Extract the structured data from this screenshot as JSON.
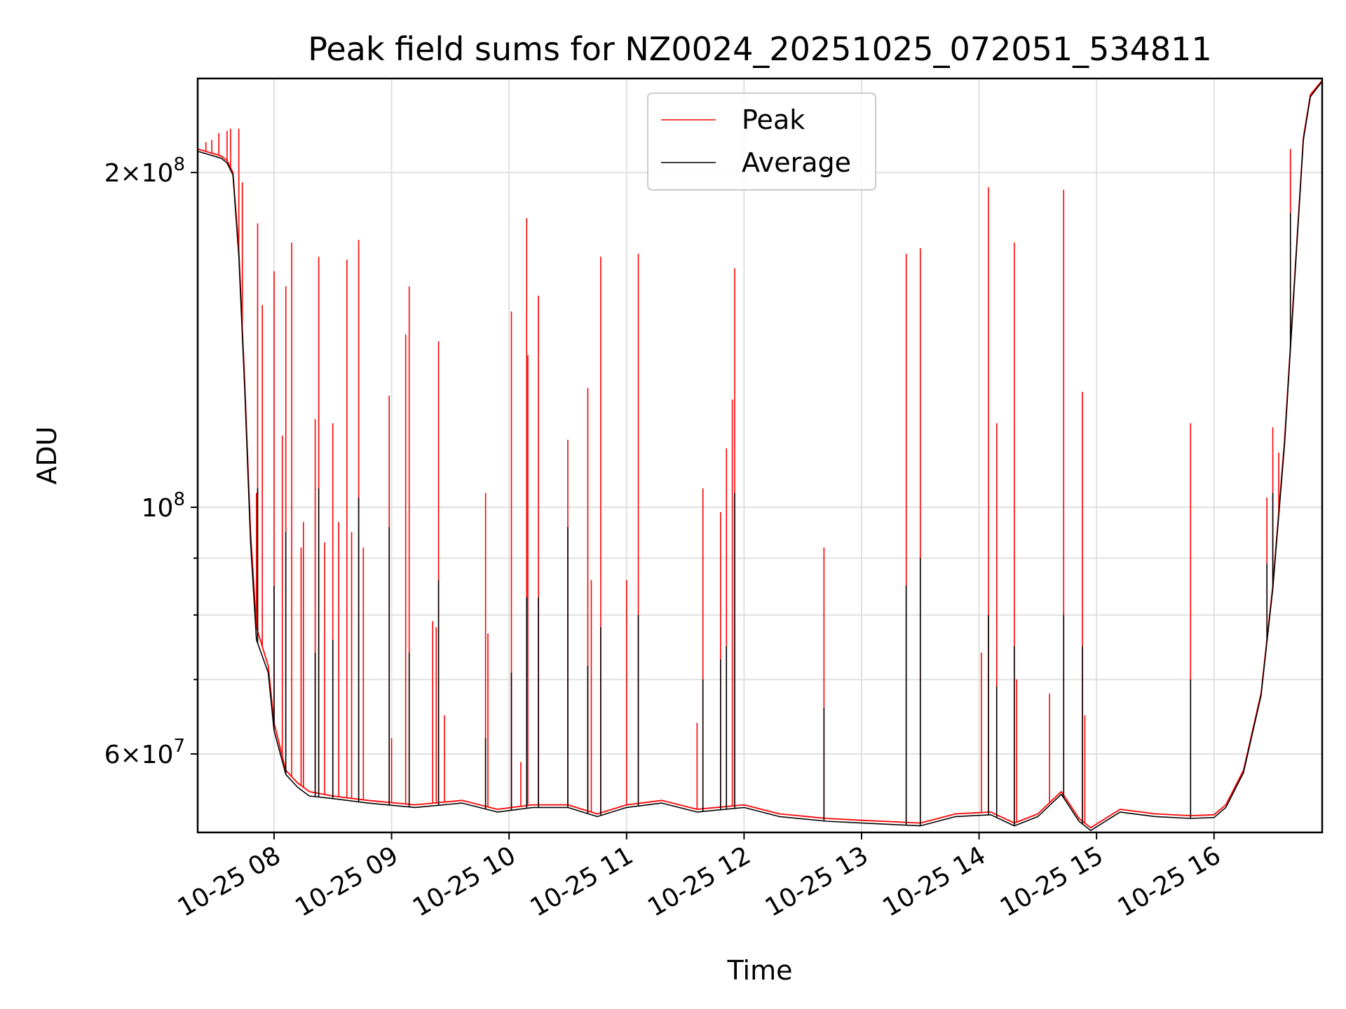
{
  "chart_data": {
    "type": "line",
    "title": "Peak field sums for NZ0024_20251025_072051_534811",
    "xlabel": "Time",
    "ylabel": "ADU",
    "y_scale": "log",
    "x_range_hours": [
      7.35,
      16.92
    ],
    "ylim": [
      51000000,
      243000000
    ],
    "x_ticks": [
      {
        "value": 8,
        "label": "10-25 08"
      },
      {
        "value": 9,
        "label": "10-25 09"
      },
      {
        "value": 10,
        "label": "10-25 10"
      },
      {
        "value": 11,
        "label": "10-25 11"
      },
      {
        "value": 12,
        "label": "10-25 12"
      },
      {
        "value": 13,
        "label": "10-25 13"
      },
      {
        "value": 14,
        "label": "10-25 14"
      },
      {
        "value": 15,
        "label": "10-25 15"
      },
      {
        "value": 16,
        "label": "10-25 16"
      }
    ],
    "y_major_ticks": [
      {
        "value": 60000000,
        "mant": "6",
        "exp": "7"
      },
      {
        "value": 100000000,
        "mant": "",
        "exp": "8"
      },
      {
        "value": 200000000,
        "mant": "2",
        "exp": "8"
      }
    ],
    "y_minor_ticks": [
      70000000,
      80000000,
      90000000
    ],
    "legend_position": "upper center",
    "series": [
      {
        "name": "Peak",
        "color": "#ff0000",
        "baseline": [
          [
            7.35,
            210000000
          ],
          [
            7.55,
            207000000
          ],
          [
            7.6,
            205000000
          ],
          [
            7.65,
            200000000
          ],
          [
            7.7,
            170000000
          ],
          [
            7.75,
            130000000
          ],
          [
            7.8,
            95000000
          ],
          [
            7.85,
            78000000
          ],
          [
            7.95,
            72000000
          ],
          [
            8.0,
            64000000
          ],
          [
            8.1,
            58000000
          ],
          [
            8.2,
            56500000
          ],
          [
            8.3,
            55500000
          ],
          [
            8.5,
            55000000
          ],
          [
            8.8,
            54500000
          ],
          [
            9.2,
            54000000
          ],
          [
            9.6,
            54500000
          ],
          [
            9.9,
            53500000
          ],
          [
            10.2,
            54000000
          ],
          [
            10.5,
            54000000
          ],
          [
            10.75,
            53000000
          ],
          [
            11.0,
            54000000
          ],
          [
            11.3,
            54500000
          ],
          [
            11.6,
            53500000
          ],
          [
            12.0,
            54000000
          ],
          [
            12.3,
            53000000
          ],
          [
            12.7,
            52500000
          ],
          [
            13.0,
            52300000
          ],
          [
            13.5,
            52000000
          ],
          [
            13.8,
            53000000
          ],
          [
            14.1,
            53200000
          ],
          [
            14.3,
            52000000
          ],
          [
            14.5,
            53000000
          ],
          [
            14.7,
            55500000
          ],
          [
            14.85,
            52500000
          ],
          [
            14.95,
            51500000
          ],
          [
            15.2,
            53500000
          ],
          [
            15.5,
            53000000
          ],
          [
            15.8,
            52800000
          ],
          [
            16.0,
            52900000
          ],
          [
            16.1,
            54000000
          ],
          [
            16.25,
            58000000
          ],
          [
            16.4,
            68000000
          ],
          [
            16.5,
            85000000
          ],
          [
            16.6,
            115000000
          ],
          [
            16.7,
            170000000
          ],
          [
            16.76,
            215000000
          ],
          [
            16.82,
            235000000
          ],
          [
            16.92,
            242000000
          ]
        ],
        "spikes": [
          [
            7.42,
            213000000
          ],
          [
            7.47,
            214000000
          ],
          [
            7.53,
            217000000
          ],
          [
            7.6,
            218000000
          ],
          [
            7.63,
            219000000
          ],
          [
            7.7,
            219000000
          ],
          [
            7.73,
            196000000
          ],
          [
            7.86,
            180000000
          ],
          [
            7.9,
            152000000
          ],
          [
            7.85,
            103000000
          ],
          [
            8.0,
            163000000
          ],
          [
            8.07,
            116000000
          ],
          [
            8.1,
            158000000
          ],
          [
            8.15,
            173000000
          ],
          [
            8.23,
            92000000
          ],
          [
            8.25,
            97000000
          ],
          [
            8.35,
            120000000
          ],
          [
            8.38,
            168000000
          ],
          [
            8.43,
            93000000
          ],
          [
            8.5,
            119000000
          ],
          [
            8.55,
            97000000
          ],
          [
            8.62,
            167000000
          ],
          [
            8.66,
            95000000
          ],
          [
            8.72,
            174000000
          ],
          [
            8.76,
            92000000
          ],
          [
            8.98,
            126000000
          ],
          [
            9.0,
            62000000
          ],
          [
            9.12,
            143000000
          ],
          [
            9.15,
            158000000
          ],
          [
            9.35,
            79000000
          ],
          [
            9.38,
            78000000
          ],
          [
            9.4,
            141000000
          ],
          [
            9.45,
            65000000
          ],
          [
            9.8,
            103000000
          ],
          [
            9.82,
            77000000
          ],
          [
            10.02,
            150000000
          ],
          [
            10.1,
            59000000
          ],
          [
            10.15,
            182000000
          ],
          [
            10.16,
            137000000
          ],
          [
            10.25,
            155000000
          ],
          [
            10.5,
            115000000
          ],
          [
            10.67,
            128000000
          ],
          [
            10.7,
            86000000
          ],
          [
            10.78,
            168000000
          ],
          [
            11.0,
            86000000
          ],
          [
            11.1,
            169000000
          ],
          [
            11.6,
            64000000
          ],
          [
            11.65,
            104000000
          ],
          [
            11.8,
            99000000
          ],
          [
            11.85,
            113000000
          ],
          [
            11.9,
            125000000
          ],
          [
            11.92,
            164000000
          ],
          [
            12.68,
            92000000
          ],
          [
            13.38,
            169000000
          ],
          [
            13.5,
            171000000
          ],
          [
            14.02,
            74000000
          ],
          [
            14.08,
            194000000
          ],
          [
            14.15,
            119000000
          ],
          [
            14.3,
            173000000
          ],
          [
            14.32,
            70000000
          ],
          [
            14.6,
            68000000
          ],
          [
            14.72,
            193000000
          ],
          [
            14.88,
            127000000
          ],
          [
            14.9,
            65000000
          ],
          [
            15.8,
            119000000
          ],
          [
            16.45,
            102000000
          ],
          [
            16.5,
            118000000
          ],
          [
            16.55,
            112000000
          ],
          [
            16.65,
            210000000
          ]
        ]
      },
      {
        "name": "Average",
        "color": "#000000",
        "baseline": [
          [
            7.35,
            209000000
          ],
          [
            7.55,
            206000000
          ],
          [
            7.6,
            204000000
          ],
          [
            7.65,
            199000000
          ],
          [
            7.7,
            168000000
          ],
          [
            7.75,
            128000000
          ],
          [
            7.8,
            93000000
          ],
          [
            7.85,
            76000000
          ],
          [
            7.95,
            71000000
          ],
          [
            8.0,
            63000000
          ],
          [
            8.1,
            57500000
          ],
          [
            8.2,
            56000000
          ],
          [
            8.3,
            55000000
          ],
          [
            8.5,
            54700000
          ],
          [
            8.8,
            54200000
          ],
          [
            9.2,
            53700000
          ],
          [
            9.6,
            54200000
          ],
          [
            9.9,
            53200000
          ],
          [
            10.2,
            53700000
          ],
          [
            10.5,
            53700000
          ],
          [
            10.75,
            52700000
          ],
          [
            11.0,
            53700000
          ],
          [
            11.3,
            54200000
          ],
          [
            11.6,
            53200000
          ],
          [
            12.0,
            53700000
          ],
          [
            12.3,
            52700000
          ],
          [
            12.7,
            52200000
          ],
          [
            13.0,
            52000000
          ],
          [
            13.5,
            51700000
          ],
          [
            13.8,
            52700000
          ],
          [
            14.1,
            52900000
          ],
          [
            14.3,
            51700000
          ],
          [
            14.5,
            52700000
          ],
          [
            14.7,
            55200000
          ],
          [
            14.85,
            52200000
          ],
          [
            14.95,
            51200000
          ],
          [
            15.2,
            53200000
          ],
          [
            15.5,
            52700000
          ],
          [
            15.8,
            52500000
          ],
          [
            16.0,
            52600000
          ],
          [
            16.1,
            53700000
          ],
          [
            16.25,
            57700000
          ],
          [
            16.4,
            67700000
          ],
          [
            16.5,
            84500000
          ],
          [
            16.6,
            114000000
          ],
          [
            16.7,
            169000000
          ],
          [
            16.76,
            214000000
          ],
          [
            16.82,
            234000000
          ],
          [
            16.92,
            241500000
          ]
        ],
        "spikes": [
          [
            7.86,
            104000000
          ],
          [
            8.0,
            85000000
          ],
          [
            8.1,
            95000000
          ],
          [
            8.35,
            74000000
          ],
          [
            8.38,
            104000000
          ],
          [
            8.5,
            76000000
          ],
          [
            8.72,
            102000000
          ],
          [
            8.98,
            96000000
          ],
          [
            9.15,
            74000000
          ],
          [
            9.4,
            86000000
          ],
          [
            9.8,
            62000000
          ],
          [
            10.02,
            71000000
          ],
          [
            10.15,
            83000000
          ],
          [
            10.25,
            83000000
          ],
          [
            10.5,
            96000000
          ],
          [
            10.67,
            72000000
          ],
          [
            10.78,
            78000000
          ],
          [
            11.1,
            80000000
          ],
          [
            11.65,
            70000000
          ],
          [
            11.8,
            73000000
          ],
          [
            11.85,
            75000000
          ],
          [
            11.92,
            103000000
          ],
          [
            12.68,
            66000000
          ],
          [
            13.38,
            85000000
          ],
          [
            13.5,
            90000000
          ],
          [
            14.08,
            80000000
          ],
          [
            14.15,
            69000000
          ],
          [
            14.3,
            75000000
          ],
          [
            14.72,
            80000000
          ],
          [
            14.88,
            75000000
          ],
          [
            15.8,
            70000000
          ],
          [
            16.45,
            89000000
          ],
          [
            16.5,
            103000000
          ],
          [
            16.65,
            184000000
          ]
        ]
      }
    ]
  }
}
